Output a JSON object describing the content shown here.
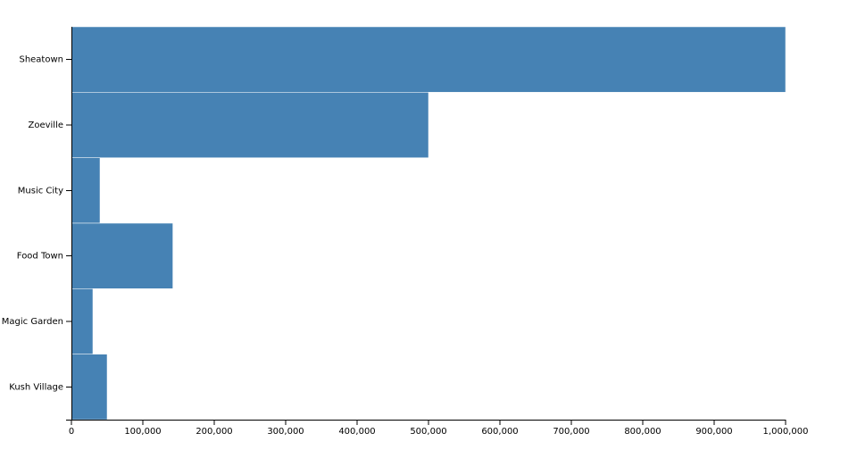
{
  "chart_data": {
    "type": "bar",
    "orientation": "horizontal",
    "categories": [
      "Sheatown",
      "Zoeville",
      "Music City",
      "Food Town",
      "Magic Garden",
      "Kush Village"
    ],
    "values": [
      1000000,
      500000,
      40000,
      142000,
      30000,
      50000
    ],
    "x_ticks": [
      "0",
      "100,000",
      "200,000",
      "300,000",
      "400,000",
      "500,000",
      "600,000",
      "700,000",
      "800,000",
      "900,000",
      "1,000,000"
    ],
    "xlim": [
      0,
      1000000
    ],
    "title": "",
    "xlabel": "",
    "ylabel": "",
    "grid": false,
    "legend": "none",
    "bar_color": "#4682b4"
  }
}
